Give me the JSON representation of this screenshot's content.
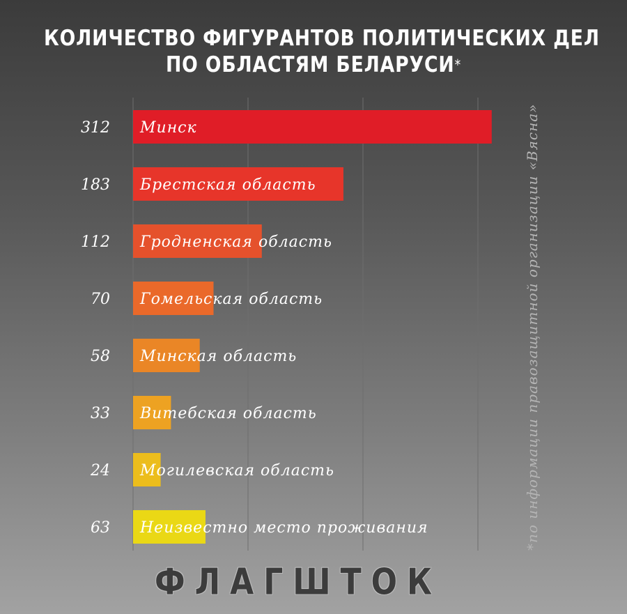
{
  "title": {
    "line1": "КОЛИЧЕСТВО ФИГУРАНТОВ ПОЛИТИЧЕСКИХ ДЕЛ",
    "line2": "ПО ОБЛАСТЯМ БЕЛАРУСИ",
    "marker": "*"
  },
  "footnote": "*по информации правозащитной организации «Вясна»",
  "logo": "ФЛАГШТОК",
  "colors": {
    "bar_gradient": [
      "#e01d27",
      "#e7352a",
      "#e5512c",
      "#ea692a",
      "#ea8626",
      "#eda222",
      "#ecbd1c",
      "#ead815"
    ],
    "value_text": "#ffffff",
    "label_text": "#ffffff",
    "gridline": "#6e6e6e"
  },
  "chart_data": {
    "type": "bar",
    "orientation": "horizontal",
    "title": "КОЛИЧЕСТВО ФИГУРАНТОВ ПОЛИТИЧЕСКИХ ДЕЛ ПО ОБЛАСТЯМ БЕЛАРУСИ*",
    "categories": [
      "Минск",
      "Брестская область",
      "Гродненская область",
      "Гомельская область",
      "Минская область",
      "Витебская область",
      "Могилевская область",
      "Неизвестно место проживания"
    ],
    "values": [
      312,
      183,
      112,
      70,
      58,
      33,
      24,
      63
    ],
    "value_labels": [
      "312",
      "183",
      "112",
      "70",
      "58",
      "33",
      "24",
      "63"
    ],
    "xlim": [
      0,
      333
    ],
    "grid": true,
    "xlabel": "",
    "ylabel": ""
  }
}
